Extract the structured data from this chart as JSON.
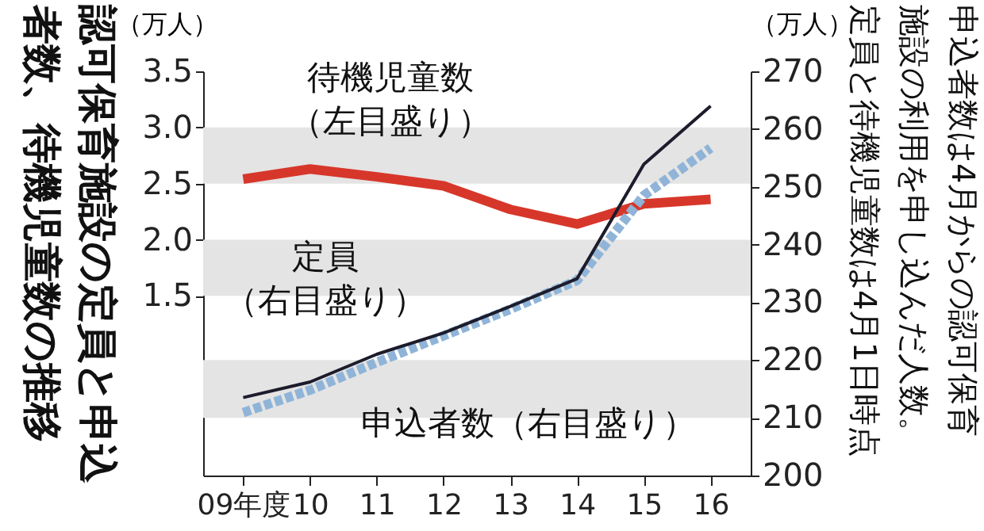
{
  "chart_data": {
    "type": "line",
    "title": "認可保育施設の定員と申込者数、待機児童数の推移",
    "categories": [
      "09年度",
      "10",
      "11",
      "12",
      "13",
      "14",
      "15",
      "16"
    ],
    "ylabel": "（万人）",
    "y2label": "（万人）",
    "ylim": [
      -0.1,
      3.5
    ],
    "yticks": [
      {
        "value": 1.5,
        "label": "1.5"
      },
      {
        "value": 2,
        "label": "2.0"
      },
      {
        "value": 2.5,
        "label": "2.5"
      },
      {
        "value": 3,
        "label": "3.0"
      },
      {
        "value": 3.5,
        "label": "3.5"
      }
    ],
    "y2lim": [
      200,
      270
    ],
    "y2ticks": [
      200,
      210,
      220,
      230,
      240,
      250,
      260,
      270
    ],
    "series": [
      {
        "name": "待機児童数（左目盛り）",
        "color": "#d7372a",
        "values": [
          2.54,
          2.63,
          2.56,
          2.48,
          2.27,
          2.14,
          2.32,
          2.36
        ],
        "axis": "y",
        "line_style": "solid"
      },
      {
        "name": "申込者数（右目盛り）",
        "color": "#8fb4d8",
        "values": [
          210.9,
          214.8,
          219.6,
          224.2,
          228.8,
          233.8,
          248.5,
          256.7
        ],
        "axis": "y2",
        "line_style": "dashed"
      },
      {
        "name": "定員（右目盛り）",
        "color": "#1c1c2c",
        "values": [
          213.5,
          216.2,
          221.0,
          224.7,
          229.3,
          234.1,
          253.9,
          264.0
        ],
        "axis": "y2",
        "line_style": "solid"
      }
    ],
    "bands": [
      {
        "axis": "y",
        "from": 2.5,
        "to": 3.0,
        "color": "#e4e4e4"
      },
      {
        "axis": "y",
        "from": 1.5,
        "to": 2.0,
        "color": "#e4e4e4"
      },
      {
        "axis": "y2",
        "from": 210,
        "to": 220,
        "color": "#e4e4e4"
      }
    ],
    "annotations": [
      "申込者数は4月からの認可保育施設の利用を申し込んだ人数。定員と待機児童数は4月1日時点"
    ]
  }
}
